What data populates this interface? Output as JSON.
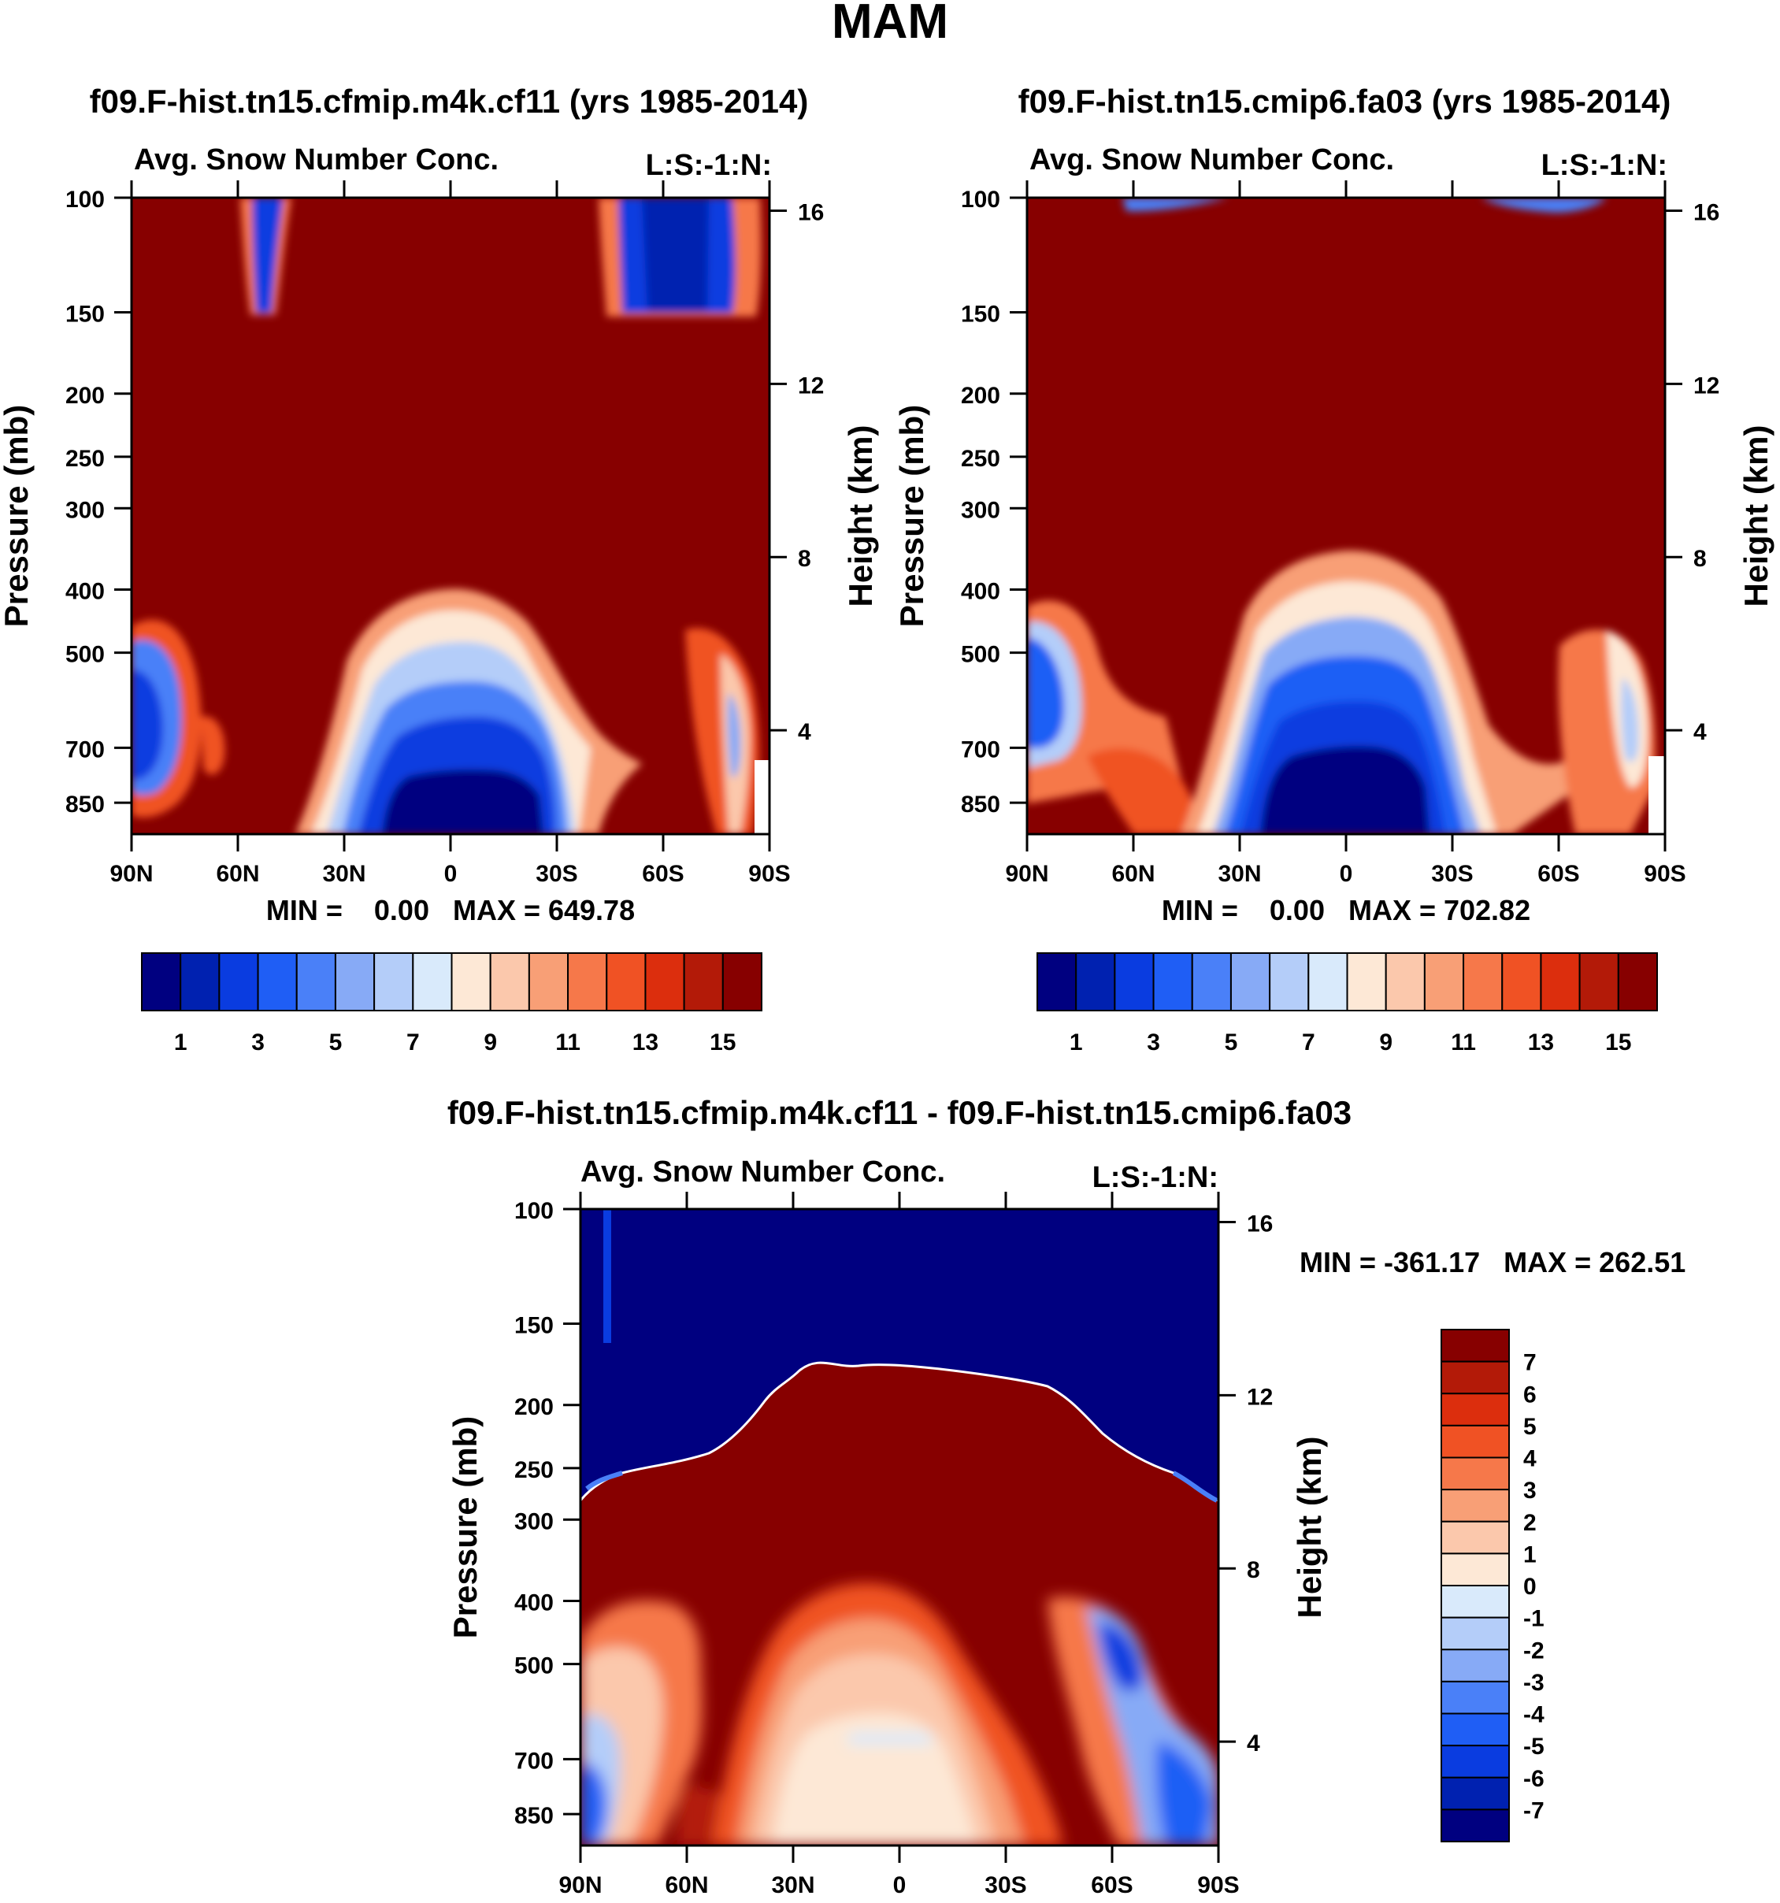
{
  "figure": {
    "title": "MAM"
  },
  "colors": {
    "levels16": [
      "#000080",
      "#0021b0",
      "#0a3ce0",
      "#1f5ef5",
      "#4a80f8",
      "#87aaf6",
      "#b4cdf9",
      "#d9eafb",
      "#fde8d6",
      "#fbc8ac",
      "#f89f76",
      "#f6784a",
      "#f05224",
      "#dc2e0d",
      "#b31a08",
      "#870000"
    ],
    "panel_frame": "#000000"
  },
  "chart_data": [
    {
      "id": "panel1",
      "type": "contour",
      "title": "f09.F-hist.tn15.cfmip.m4k.cf11 (yrs 1985-2014)",
      "subtitle_left": "Avg. Snow Number Conc.",
      "subtitle_right": "L:S:-1:N:",
      "xlabel": "",
      "ylabel": "Pressure (mb)",
      "y2label": "Height (km)",
      "x_ticks": [
        "90N",
        "60N",
        "30N",
        "0",
        "30S",
        "60S",
        "90S"
      ],
      "y_ticks": [
        100,
        150,
        200,
        250,
        300,
        400,
        500,
        700,
        850
      ],
      "y2_ticks": [
        16,
        12,
        8,
        4
      ],
      "stats": "MIN =    0.00   MAX = 649.78",
      "colorbar": {
        "orientation": "horizontal",
        "labels": [
          "1",
          "3",
          "5",
          "7",
          "9",
          "11",
          "13",
          "15"
        ]
      }
    },
    {
      "id": "panel2",
      "type": "contour",
      "title": "f09.F-hist.tn15.cmip6.fa03 (yrs 1985-2014)",
      "subtitle_left": "Avg. Snow Number Conc.",
      "subtitle_right": "L:S:-1:N:",
      "xlabel": "",
      "ylabel": "Pressure (mb)",
      "y2label": "Height (km)",
      "x_ticks": [
        "90N",
        "60N",
        "30N",
        "0",
        "30S",
        "60S",
        "90S"
      ],
      "y_ticks": [
        100,
        150,
        200,
        250,
        300,
        400,
        500,
        700,
        850
      ],
      "y2_ticks": [
        16,
        12,
        8,
        4
      ],
      "stats": "MIN =    0.00   MAX = 702.82",
      "colorbar": {
        "orientation": "horizontal",
        "labels": [
          "1",
          "3",
          "5",
          "7",
          "9",
          "11",
          "13",
          "15"
        ]
      }
    },
    {
      "id": "panel3",
      "type": "contour",
      "title": "f09.F-hist.tn15.cfmip.m4k.cf11 - f09.F-hist.tn15.cmip6.fa03",
      "subtitle_left": "Avg. Snow Number Conc.",
      "subtitle_right": "L:S:-1:N:",
      "xlabel": "",
      "ylabel": "Pressure (mb)",
      "y2label": "Height (km)",
      "x_ticks": [
        "90N",
        "60N",
        "30N",
        "0",
        "30S",
        "60S",
        "90S"
      ],
      "y_ticks": [
        100,
        150,
        200,
        250,
        300,
        400,
        500,
        700,
        850
      ],
      "y2_ticks": [
        16,
        12,
        8,
        4
      ],
      "stats": "MIN = -361.17   MAX = 262.51",
      "colorbar": {
        "orientation": "vertical",
        "labels": [
          "7",
          "6",
          "5",
          "4",
          "3",
          "2",
          "1",
          "0",
          "-1",
          "-2",
          "-3",
          "-4",
          "-5",
          "-6",
          "-7"
        ]
      }
    }
  ]
}
